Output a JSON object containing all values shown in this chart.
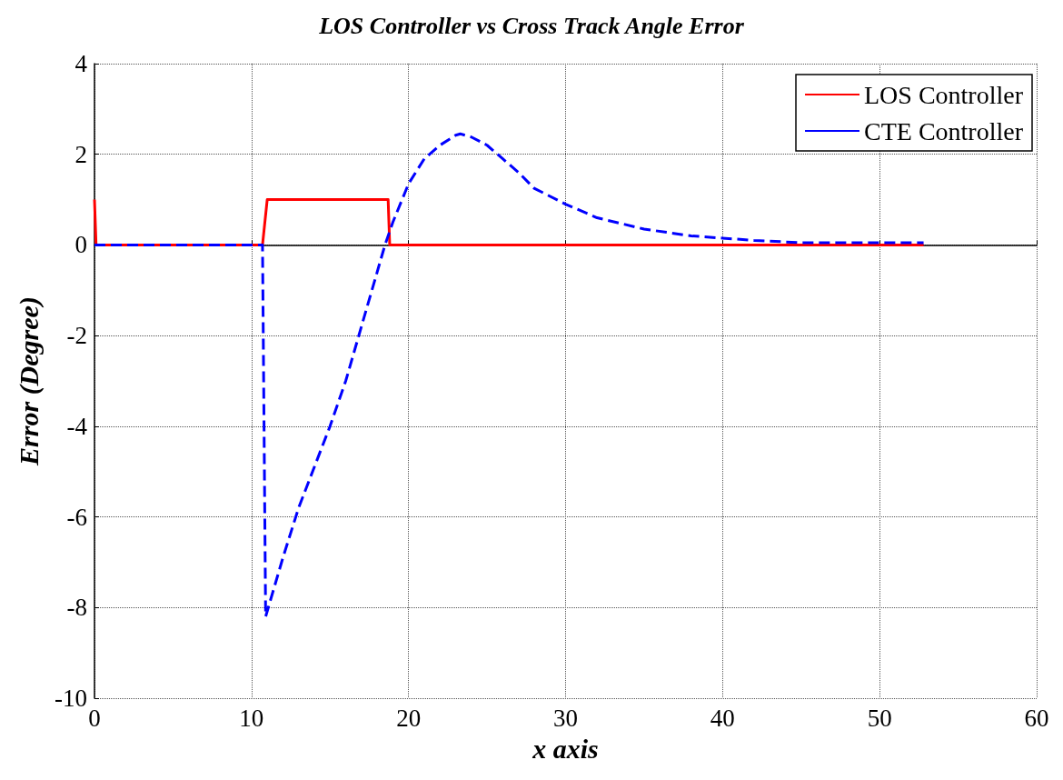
{
  "chart_data": {
    "type": "line",
    "title": "LOS Controller vs Cross Track Angle Error",
    "xlabel": "x axis",
    "ylabel": "Error (Degree)",
    "xlim": [
      0,
      60
    ],
    "xticks": [
      0,
      10,
      20,
      30,
      40,
      50,
      60
    ],
    "ylim": [
      -10,
      4
    ],
    "yticks": [
      -10,
      -8,
      -6,
      -4,
      -2,
      0,
      2,
      4
    ],
    "grid": true,
    "legend": "top right",
    "series": [
      {
        "name": "LOS Controller",
        "color": "#ff0000",
        "line_style": "solid",
        "x": [
          0,
          0.1,
          10.7,
          11.0,
          18.7,
          18.8,
          52.8
        ],
        "values": [
          1,
          0,
          0,
          1,
          1,
          0,
          0
        ]
      },
      {
        "name": "CTE Controller",
        "color": "#0000ff",
        "line_style": "dashed",
        "x": [
          0,
          10.7,
          10.9,
          12,
          13,
          14,
          15,
          16,
          17,
          18,
          18.5,
          19,
          20,
          21,
          22,
          23,
          23.3,
          24,
          25,
          26,
          27,
          28,
          30,
          32,
          35,
          38,
          40,
          42,
          45,
          52.8
        ],
        "values": [
          0,
          0,
          -8.2,
          -6.9,
          -5.8,
          -4.9,
          -4.0,
          -3.0,
          -1.8,
          -0.6,
          0,
          0.5,
          1.35,
          1.9,
          2.2,
          2.42,
          2.45,
          2.38,
          2.2,
          1.9,
          1.6,
          1.25,
          0.9,
          0.6,
          0.35,
          0.2,
          0.15,
          0.1,
          0.05,
          0.05
        ]
      }
    ]
  }
}
